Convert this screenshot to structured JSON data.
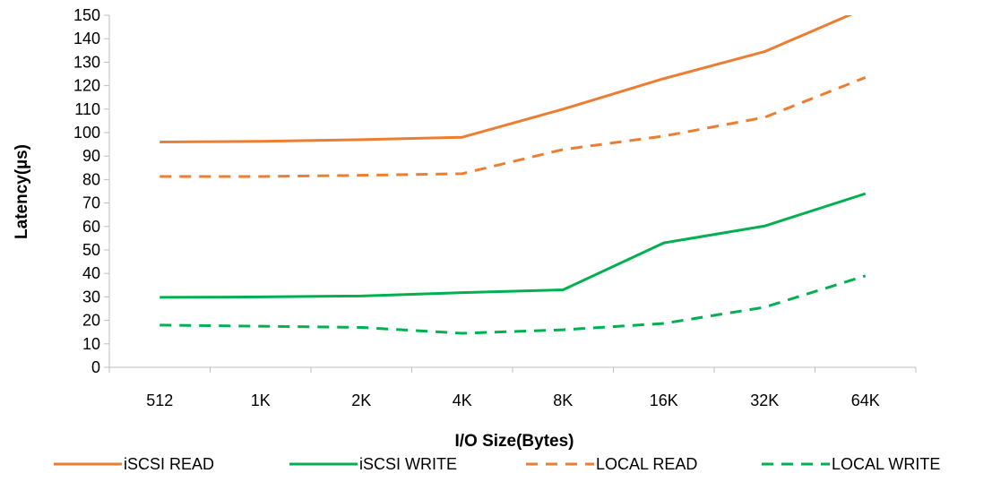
{
  "chart_data": {
    "type": "line",
    "xlabel": "I/O Size(Bytes)",
    "ylabel": "Latency(µs)",
    "categories": [
      "512",
      "1K",
      "2K",
      "4K",
      "8K",
      "16K",
      "32K",
      "64K"
    ],
    "ylim": [
      0,
      150
    ],
    "yticks": [
      0,
      10,
      20,
      30,
      40,
      50,
      60,
      70,
      80,
      90,
      100,
      110,
      120,
      130,
      140,
      150
    ],
    "grid": false,
    "legend_position": "bottom",
    "series": [
      {
        "name": "iSCSI READ",
        "values": [
          96,
          96.3,
          97,
          98,
          110,
          123,
          134.5,
          153
        ],
        "color": "#ED7D31",
        "dash": "solid"
      },
      {
        "name": "iSCSI WRITE",
        "values": [
          29.8,
          30,
          30.4,
          31.8,
          33,
          53,
          60.2,
          74
        ],
        "color": "#00B050",
        "dash": "solid"
      },
      {
        "name": "LOCAL READ",
        "values": [
          81.3,
          81.3,
          81.8,
          82.5,
          92.8,
          98.5,
          106.5,
          123.5
        ],
        "color": "#ED7D31",
        "dash": "dashed"
      },
      {
        "name": "LOCAL WRITE",
        "values": [
          18,
          17.5,
          17,
          14.5,
          16,
          18.7,
          25.6,
          39
        ],
        "color": "#00B050",
        "dash": "dashed"
      }
    ]
  }
}
